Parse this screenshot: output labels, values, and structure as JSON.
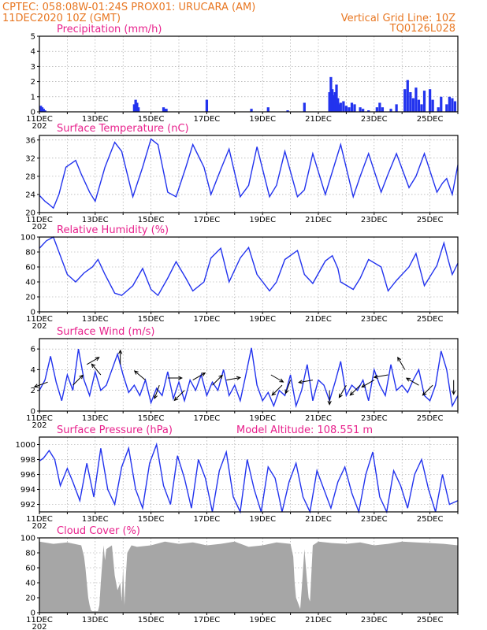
{
  "header": {
    "line1_left": "CPTEC:   058:08W-01:24S   PROX01: URUCARA (AM)",
    "line2_left": "11DEC2020 10Z (GMT)",
    "line2_right": "Vertical Grid Line: 10Z",
    "line3_right": "TQ0126L028"
  },
  "x_labels": [
    "11DEC",
    "13DEC",
    "15DEC",
    "17DEC",
    "19DEC",
    "21DEC",
    "23DEC",
    "25DEC"
  ],
  "x_label_stub": "202",
  "colors": {
    "line": "#2233ee",
    "bars": "#2233ee",
    "cloud": "#a6a6a6",
    "header": "#e87722",
    "title": "#e8218c"
  },
  "chart_data": [
    {
      "type": "bar",
      "title": "Precipitation (mm/h)",
      "x_range_days": [
        0,
        15
      ],
      "ylim": [
        0,
        5
      ],
      "yticks": [
        "0",
        "1",
        "2",
        "3",
        "4",
        "5"
      ],
      "grid": true,
      "x": [
        0.05,
        0.1,
        0.15,
        0.2,
        3.4,
        3.45,
        3.5,
        3.55,
        4.45,
        4.5,
        4.55,
        6.0,
        7.6,
        8.2,
        8.9,
        9.5,
        10.4,
        10.45,
        10.5,
        10.55,
        10.6,
        10.65,
        10.7,
        10.75,
        10.8,
        10.9,
        11.0,
        11.1,
        11.2,
        11.3,
        11.5,
        11.6,
        11.8,
        12.1,
        12.2,
        12.3,
        12.6,
        12.8,
        13.1,
        13.2,
        13.3,
        13.4,
        13.5,
        13.6,
        13.7,
        13.8,
        14.0,
        14.1,
        14.3,
        14.4,
        14.6,
        14.7,
        14.8,
        14.9
      ],
      "values": [
        0.4,
        0.3,
        0.2,
        0.1,
        0.5,
        0.8,
        0.6,
        0.3,
        0.3,
        0.2,
        0.2,
        0.8,
        0.2,
        0.3,
        0.1,
        0.6,
        1.3,
        2.3,
        1.5,
        1.1,
        1.3,
        1.8,
        0.9,
        0.5,
        0.6,
        0.7,
        0.4,
        0.3,
        0.6,
        0.5,
        0.3,
        0.2,
        0.1,
        0.3,
        0.6,
        0.3,
        0.2,
        0.5,
        1.5,
        2.1,
        1.3,
        0.9,
        1.6,
        0.8,
        0.5,
        1.4,
        1.5,
        0.8,
        0.3,
        1.0,
        0.5,
        1.0,
        0.9,
        0.7
      ]
    },
    {
      "type": "line",
      "title": "Surface Temperature (nC)",
      "x_range_days": [
        0,
        15
      ],
      "ylim": [
        20,
        37
      ],
      "yticks": [
        "20",
        "24",
        "28",
        "32",
        "36"
      ],
      "grid": true,
      "x": [
        0,
        0.2,
        0.35,
        0.5,
        0.7,
        0.95,
        1.3,
        1.5,
        1.8,
        2.0,
        2.35,
        2.7,
        2.95,
        3.35,
        3.7,
        4.0,
        4.25,
        4.6,
        4.9,
        5.25,
        5.5,
        5.9,
        6.15,
        6.5,
        6.8,
        7.2,
        7.5,
        7.8,
        8.25,
        8.5,
        8.8,
        9.25,
        9.5,
        9.8,
        10.25,
        10.5,
        10.8,
        11.25,
        11.5,
        11.8,
        12.25,
        12.5,
        12.8,
        13.25,
        13.5,
        13.8,
        14.25,
        14.45,
        14.6,
        14.8,
        15.0
      ],
      "values": [
        23.8,
        22.5,
        21.8,
        21.0,
        24.0,
        30.0,
        31.5,
        28.5,
        24.5,
        22.5,
        30.0,
        35.5,
        33.5,
        23.5,
        30.0,
        36.2,
        35.0,
        24.5,
        23.5,
        30.0,
        35.0,
        30.0,
        24.0,
        29.5,
        34.0,
        23.5,
        26.0,
        34.5,
        23.5,
        26.0,
        33.5,
        23.5,
        25.0,
        33.0,
        24.0,
        29.0,
        35.0,
        23.5,
        28.0,
        33.0,
        24.5,
        28.5,
        33.0,
        25.5,
        28.0,
        33.0,
        24.5,
        26.5,
        27.5,
        24.0,
        30.5
      ]
    },
    {
      "type": "line",
      "title": "Relative Humidity (%)",
      "x_range_days": [
        0,
        15
      ],
      "ylim": [
        0,
        100
      ],
      "yticks": [
        "0",
        "20",
        "40",
        "60",
        "80",
        "100"
      ],
      "grid": true,
      "x": [
        0,
        0.25,
        0.5,
        0.75,
        1.0,
        1.3,
        1.6,
        1.9,
        2.1,
        2.35,
        2.7,
        2.95,
        3.35,
        3.7,
        4.0,
        4.25,
        4.6,
        4.9,
        5.25,
        5.5,
        5.9,
        6.15,
        6.5,
        6.8,
        7.2,
        7.5,
        7.8,
        8.25,
        8.5,
        8.8,
        9.25,
        9.5,
        9.8,
        10.25,
        10.5,
        10.7,
        10.8,
        11.25,
        11.5,
        11.8,
        12.25,
        12.5,
        12.8,
        13.25,
        13.5,
        13.8,
        14.25,
        14.5,
        14.65,
        14.8,
        15.0
      ],
      "values": [
        85,
        95,
        100,
        75,
        50,
        40,
        52,
        60,
        70,
        50,
        25,
        22,
        35,
        58,
        30,
        22,
        45,
        67,
        45,
        28,
        40,
        72,
        85,
        40,
        72,
        86,
        50,
        28,
        40,
        70,
        82,
        50,
        38,
        68,
        75,
        58,
        40,
        30,
        45,
        70,
        60,
        28,
        42,
        60,
        78,
        35,
        62,
        92,
        70,
        50,
        65
      ]
    },
    {
      "type": "line",
      "title": "Surface Wind (m/s)",
      "x_range_days": [
        0,
        15
      ],
      "ylim": [
        0,
        7
      ],
      "yticks": [
        "0",
        "2",
        "4",
        "6"
      ],
      "grid": true,
      "x": [
        0,
        0.2,
        0.4,
        0.6,
        0.8,
        1.0,
        1.2,
        1.4,
        1.6,
        1.8,
        2.0,
        2.2,
        2.4,
        2.6,
        2.8,
        3.0,
        3.2,
        3.4,
        3.6,
        3.8,
        4.0,
        4.2,
        4.4,
        4.6,
        4.8,
        5.0,
        5.2,
        5.4,
        5.6,
        5.8,
        6.0,
        6.2,
        6.4,
        6.6,
        6.8,
        7.0,
        7.2,
        7.4,
        7.6,
        7.8,
        8.0,
        8.2,
        8.4,
        8.6,
        8.8,
        9.0,
        9.2,
        9.4,
        9.6,
        9.8,
        10.0,
        10.2,
        10.4,
        10.6,
        10.8,
        11.0,
        11.2,
        11.4,
        11.6,
        11.8,
        12.0,
        12.2,
        12.4,
        12.6,
        12.8,
        13.0,
        13.2,
        13.4,
        13.6,
        13.8,
        14.0,
        14.2,
        14.4,
        14.6,
        14.8,
        15.0
      ],
      "values": [
        2.0,
        3.0,
        5.3,
        2.8,
        1.0,
        3.5,
        2.0,
        6.0,
        3.0,
        1.5,
        3.8,
        2.0,
        2.5,
        4.0,
        5.5,
        3.5,
        1.8,
        2.5,
        1.5,
        3.0,
        0.8,
        2.2,
        1.5,
        3.8,
        1.2,
        2.8,
        1.0,
        3.0,
        2.0,
        3.5,
        1.5,
        2.8,
        2.0,
        4.0,
        1.5,
        2.5,
        1.0,
        3.5,
        6.1,
        2.5,
        1.0,
        1.8,
        0.5,
        2.0,
        1.5,
        3.5,
        0.5,
        2.0,
        4.5,
        1.0,
        3.0,
        2.5,
        1.0,
        2.8,
        4.8,
        1.5,
        2.5,
        2.0,
        3.0,
        1.0,
        4.0,
        2.5,
        1.5,
        4.5,
        2.0,
        2.5,
        1.8,
        3.0,
        4.0,
        1.5,
        1.0,
        2.5,
        5.8,
        4.0,
        0.5,
        1.5
      ],
      "arrows": [
        {
          "day": 0.3,
          "speed": 2.8,
          "dir_deg": 250
        },
        {
          "day": 1.2,
          "speed": 2.5,
          "dir_deg": 45
        },
        {
          "day": 1.7,
          "speed": 4.5,
          "dir_deg": 60
        },
        {
          "day": 2.2,
          "speed": 3.5,
          "dir_deg": 320
        },
        {
          "day": 2.9,
          "speed": 4.5,
          "dir_deg": 0
        },
        {
          "day": 3.8,
          "speed": 3.0,
          "dir_deg": 310
        },
        {
          "day": 4.3,
          "speed": 2.5,
          "dir_deg": 200
        },
        {
          "day": 4.6,
          "speed": 3.2,
          "dir_deg": 90
        },
        {
          "day": 5.2,
          "speed": 2.0,
          "dir_deg": 225
        },
        {
          "day": 5.5,
          "speed": 3.0,
          "dir_deg": 60
        },
        {
          "day": 6.2,
          "speed": 2.5,
          "dir_deg": 45
        },
        {
          "day": 6.7,
          "speed": 3.0,
          "dir_deg": 80
        },
        {
          "day": 8.3,
          "speed": 3.5,
          "dir_deg": 120
        },
        {
          "day": 8.7,
          "speed": 2.5,
          "dir_deg": 225
        },
        {
          "day": 9.0,
          "speed": 3.0,
          "dir_deg": 200
        },
        {
          "day": 9.8,
          "speed": 3.0,
          "dir_deg": 260
        },
        {
          "day": 10.4,
          "speed": 2.0,
          "dir_deg": 180
        },
        {
          "day": 11.0,
          "speed": 2.5,
          "dir_deg": 210
        },
        {
          "day": 11.5,
          "speed": 2.5,
          "dir_deg": 225
        },
        {
          "day": 12.0,
          "speed": 3.0,
          "dir_deg": 240
        },
        {
          "day": 12.5,
          "speed": 3.5,
          "dir_deg": 260
        },
        {
          "day": 13.1,
          "speed": 4.0,
          "dir_deg": 330
        },
        {
          "day": 13.6,
          "speed": 2.5,
          "dir_deg": 300
        },
        {
          "day": 14.1,
          "speed": 2.5,
          "dir_deg": 225
        },
        {
          "day": 14.85,
          "speed": 3.0,
          "dir_deg": 180
        }
      ]
    },
    {
      "type": "line",
      "title": "Surface Pressure (hPa)",
      "annotation": "Model Altitude: 108.551  m",
      "x_range_days": [
        0,
        15
      ],
      "ylim": [
        991,
        1001
      ],
      "yticks": [
        "992",
        "994",
        "996",
        "998",
        "1000"
      ],
      "grid": true,
      "x": [
        0,
        0.15,
        0.35,
        0.55,
        0.75,
        1.0,
        1.2,
        1.45,
        1.7,
        1.95,
        2.2,
        2.45,
        2.7,
        2.95,
        3.2,
        3.45,
        3.7,
        3.95,
        4.2,
        4.45,
        4.7,
        4.95,
        5.2,
        5.45,
        5.7,
        5.95,
        6.2,
        6.45,
        6.7,
        6.95,
        7.2,
        7.45,
        7.7,
        7.95,
        8.2,
        8.45,
        8.7,
        8.95,
        9.2,
        9.45,
        9.7,
        9.95,
        10.2,
        10.45,
        10.7,
        10.95,
        11.2,
        11.45,
        11.7,
        11.95,
        12.2,
        12.45,
        12.7,
        12.95,
        13.2,
        13.45,
        13.7,
        13.95,
        14.2,
        14.45,
        14.7,
        15.0
      ],
      "values": [
        997.8,
        998.2,
        999.2,
        998.0,
        994.5,
        996.8,
        995.0,
        992.5,
        997.5,
        993.0,
        999.5,
        994.0,
        992.0,
        997.0,
        999.5,
        994.0,
        991.5,
        997.5,
        1000.0,
        994.5,
        992.0,
        998.5,
        995.5,
        991.5,
        998.0,
        995.5,
        991.0,
        996.5,
        999.0,
        993.0,
        991.0,
        998.0,
        994.0,
        991.0,
        997.0,
        995.5,
        991.0,
        995.0,
        997.5,
        993.0,
        991.0,
        996.5,
        994.0,
        991.5,
        995.0,
        997.0,
        993.5,
        991.0,
        996.0,
        999.0,
        993.0,
        991.0,
        996.5,
        994.5,
        991.5,
        996.0,
        998.0,
        994.0,
        991.0,
        996.0,
        992.0,
        992.5
      ]
    },
    {
      "type": "area",
      "title": "Cloud Cover (%)",
      "x_range_days": [
        0,
        15
      ],
      "ylim": [
        0,
        100
      ],
      "yticks": [
        "0",
        "20",
        "40",
        "60",
        "80",
        "100"
      ],
      "grid": true,
      "x": [
        0,
        0.5,
        1.0,
        1.5,
        1.6,
        1.65,
        1.7,
        1.75,
        1.8,
        1.85,
        1.9,
        2.0,
        2.1,
        2.15,
        2.2,
        2.3,
        2.35,
        2.4,
        2.6,
        2.7,
        2.8,
        2.9,
        2.95,
        3.0,
        3.05,
        3.1,
        3.15,
        3.3,
        3.5,
        4.0,
        4.5,
        5.0,
        5.5,
        6.0,
        6.5,
        7.0,
        7.5,
        8.0,
        8.5,
        9.0,
        9.1,
        9.15,
        9.2,
        9.3,
        9.35,
        9.4,
        9.5,
        9.6,
        9.65,
        9.7,
        9.8,
        10.0,
        10.5,
        11.0,
        11.5,
        12.0,
        12.5,
        13.0,
        13.5,
        14.0,
        14.5,
        15.0
      ],
      "values": [
        95,
        92,
        94,
        90,
        75,
        60,
        40,
        20,
        10,
        3,
        2,
        2,
        2,
        10,
        40,
        90,
        70,
        85,
        90,
        50,
        30,
        40,
        15,
        60,
        10,
        50,
        80,
        90,
        88,
        90,
        95,
        92,
        94,
        90,
        92,
        95,
        88,
        90,
        94,
        92,
        75,
        40,
        20,
        10,
        5,
        30,
        85,
        40,
        20,
        15,
        90,
        95,
        93,
        92,
        94,
        90,
        92,
        95,
        94,
        93,
        92,
        90
      ]
    }
  ]
}
